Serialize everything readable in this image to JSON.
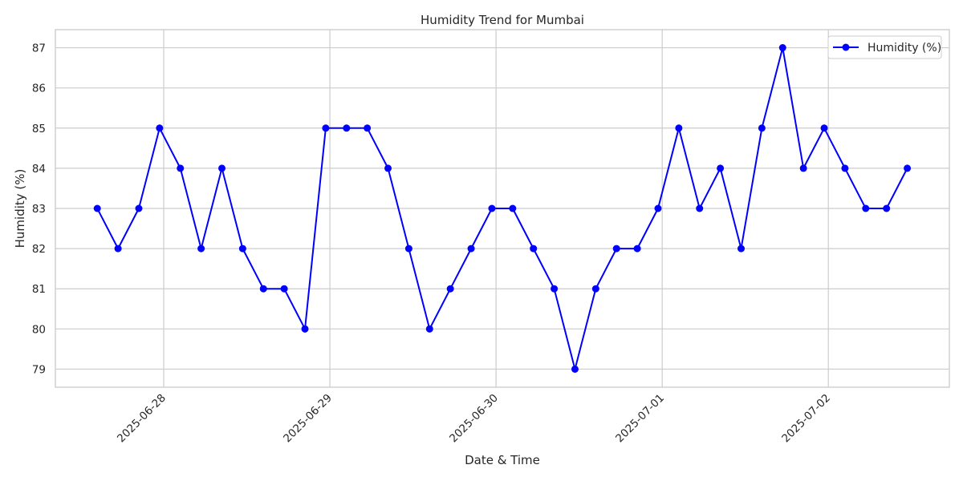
{
  "chart_data": {
    "type": "line",
    "title": "Humidity Trend for Mumbai",
    "xlabel": "Date & Time",
    "ylabel": "Humidity (%)",
    "x_ticks": [
      "2025-06-28",
      "2025-06-29",
      "2025-06-30",
      "2025-07-01",
      "2025-07-02"
    ],
    "x_tick_days": [
      1,
      2,
      3,
      4,
      5
    ],
    "y_ticks": [
      79,
      80,
      81,
      82,
      83,
      84,
      85,
      86,
      87
    ],
    "ylim": [
      78.55,
      87.45
    ],
    "xlim_days": [
      0.3478,
      5.7283
    ],
    "grid": true,
    "legend_position": "top-right",
    "series": [
      {
        "name": "Humidity (%)",
        "color": "#0000ff",
        "marker": "circle",
        "x_days": [
          0.6,
          0.725,
          0.85,
          0.975,
          1.1,
          1.225,
          1.35,
          1.475,
          1.6,
          1.725,
          1.85,
          1.975,
          2.1,
          2.225,
          2.35,
          2.475,
          2.6,
          2.725,
          2.85,
          2.975,
          3.1,
          3.225,
          3.35,
          3.475,
          3.6,
          3.725,
          3.85,
          3.975,
          4.1,
          4.225,
          4.35,
          4.475,
          4.6,
          4.725,
          4.85,
          4.975,
          5.1,
          5.225,
          5.35,
          5.475
        ],
        "values": [
          83,
          82,
          83,
          85,
          84,
          82,
          84,
          82,
          81,
          81,
          80,
          85,
          85,
          85,
          84,
          82,
          80,
          81,
          82,
          83,
          83,
          82,
          81,
          79,
          81,
          82,
          82,
          83,
          85,
          83,
          84,
          82,
          85,
          87,
          84,
          85,
          84,
          83,
          83,
          84
        ]
      }
    ]
  }
}
